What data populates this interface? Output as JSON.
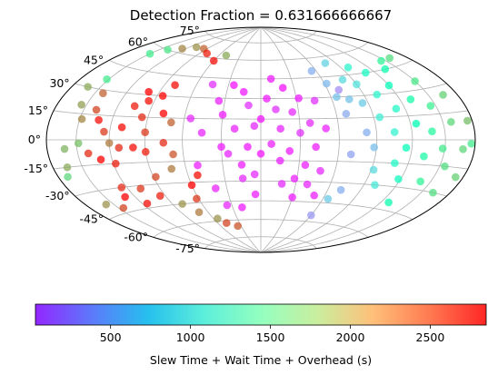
{
  "chart_data": {
    "type": "scatter",
    "projection": "hammer",
    "title": "Detection Fraction = 0.631666666667",
    "grid": true,
    "lat_ticks": [
      "75°",
      "60°",
      "45°",
      "30°",
      "15°",
      "0°",
      "-15°",
      "-30°",
      "-45°",
      "-60°",
      "-75°"
    ],
    "lat_tick_values": [
      75,
      60,
      45,
      30,
      15,
      0,
      -15,
      -30,
      -45,
      -60,
      -75
    ],
    "colorbar": {
      "label": "Slew Time + Wait Time + Overhead (s)",
      "range": [
        30,
        2850
      ],
      "ticks": [
        500,
        1000,
        1500,
        2000,
        2500
      ],
      "tick_labels": [
        "500",
        "1000",
        "1500",
        "2000",
        "2500"
      ],
      "colormap": "rainbow",
      "placement": "bottom"
    },
    "points": [
      [
        -150,
        55,
        1800
      ],
      [
        -140,
        60,
        1850
      ],
      [
        -125,
        63,
        2350
      ],
      [
        -110,
        66,
        2300
      ],
      [
        -95,
        66,
        2500
      ],
      [
        -80,
        63,
        2750
      ],
      [
        -60,
        58,
        2800
      ],
      [
        -50,
        63,
        2200
      ],
      [
        -163,
        30,
        2200
      ],
      [
        -152,
        36,
        1800
      ],
      [
        -155,
        20,
        2250
      ],
      [
        -148,
        12,
        2350
      ],
      [
        -148,
        -2,
        2100
      ],
      [
        -142,
        28,
        2500
      ],
      [
        -138,
        18,
        2600
      ],
      [
        -132,
        12,
        2800
      ],
      [
        -125,
        5,
        2650
      ],
      [
        -120,
        -2,
        2400
      ],
      [
        -140,
        -8,
        2700
      ],
      [
        -130,
        -12,
        2850
      ],
      [
        -118,
        -15,
        2750
      ],
      [
        -110,
        8,
        2800
      ],
      [
        -112,
        -5,
        2700
      ],
      [
        -105,
        22,
        2750
      ],
      [
        -100,
        32,
        2850
      ],
      [
        -95,
        26,
        2800
      ],
      [
        -95,
        15,
        2700
      ],
      [
        -90,
        5,
        2650
      ],
      [
        -100,
        -5,
        2800
      ],
      [
        -90,
        -8,
        2750
      ],
      [
        -85,
        30,
        2850
      ],
      [
        -80,
        38,
        2800
      ],
      [
        -78,
        18,
        2850
      ],
      [
        -75,
        -2,
        2700
      ],
      [
        -70,
        12,
        2500
      ],
      [
        -68,
        -10,
        2550
      ],
      [
        -72,
        -20,
        2400
      ],
      [
        -165,
        -15,
        2200
      ],
      [
        -162,
        -5,
        2150
      ],
      [
        -170,
        -20,
        1950
      ],
      [
        -158,
        -38,
        2300
      ],
      [
        -145,
        -42,
        2600
      ],
      [
        -130,
        -36,
        2850
      ],
      [
        -125,
        -30,
        2700
      ],
      [
        -115,
        -42,
        2800
      ],
      [
        -108,
        -32,
        2650
      ],
      [
        -95,
        -38,
        2750
      ],
      [
        -88,
        -25,
        2600
      ],
      [
        -80,
        -45,
        2300
      ],
      [
        -70,
        -52,
        2400
      ],
      [
        -55,
        -58,
        2300
      ],
      [
        -48,
        -62,
        2600
      ],
      [
        -35,
        -65,
        2550
      ],
      [
        -60,
        -32,
        2850
      ],
      [
        -52,
        -25,
        2800
      ],
      [
        -62,
        -42,
        2650
      ],
      [
        -45,
        40,
        200
      ],
      [
        -35,
        28,
        150
      ],
      [
        -30,
        18,
        120
      ],
      [
        -30,
        -5,
        130
      ],
      [
        -45,
        5,
        160
      ],
      [
        -25,
        40,
        90
      ],
      [
        -15,
        35,
        120
      ],
      [
        -10,
        25,
        200
      ],
      [
        -5,
        10,
        180
      ],
      [
        -20,
        8,
        150
      ],
      [
        -25,
        -10,
        160
      ],
      [
        -15,
        -18,
        130
      ],
      [
        -15,
        -28,
        180
      ],
      [
        -5,
        -40,
        140
      ],
      [
        -5,
        -25,
        170
      ],
      [
        -10,
        -5,
        120
      ],
      [
        0,
        15,
        100
      ],
      [
        0,
        -10,
        110
      ],
      [
        5,
        30,
        120
      ],
      [
        8,
        -3,
        150
      ],
      [
        10,
        45,
        130
      ],
      [
        12,
        22,
        200
      ],
      [
        15,
        8,
        160
      ],
      [
        15,
        -15,
        140
      ],
      [
        18,
        -32,
        180
      ],
      [
        20,
        38,
        90
      ],
      [
        22,
        -8,
        130
      ],
      [
        25,
        20,
        170
      ],
      [
        28,
        -28,
        150
      ],
      [
        30,
        5,
        200
      ],
      [
        30,
        -42,
        130
      ],
      [
        32,
        30,
        120
      ],
      [
        35,
        -18,
        140
      ],
      [
        38,
        12,
        180
      ],
      [
        40,
        -32,
        160
      ],
      [
        42,
        -5,
        130
      ],
      [
        45,
        28,
        200
      ],
      [
        48,
        -22,
        170
      ],
      [
        50,
        8,
        150
      ],
      [
        50,
        -40,
        140
      ],
      [
        -40,
        -35,
        150
      ],
      [
        -35,
        -48,
        160
      ],
      [
        -20,
        -50,
        130
      ],
      [
        -50,
        -18,
        140
      ],
      [
        -55,
        15,
        170
      ],
      [
        55,
        50,
        700
      ],
      [
        60,
        -55,
        600
      ],
      [
        62,
        40,
        750
      ],
      [
        65,
        30,
        800
      ],
      [
        68,
        18,
        680
      ],
      [
        70,
        -10,
        650
      ],
      [
        70,
        35,
        550
      ],
      [
        72,
        -35,
        700
      ],
      [
        75,
        28,
        800
      ],
      [
        78,
        55,
        900
      ],
      [
        80,
        42,
        950
      ],
      [
        82,
        5,
        700
      ],
      [
        85,
        25,
        850
      ],
      [
        88,
        -5,
        780
      ],
      [
        90,
        38,
        1000
      ],
      [
        92,
        -20,
        950
      ],
      [
        95,
        15,
        1100
      ],
      [
        98,
        50,
        1200
      ],
      [
        100,
        -30,
        1050
      ],
      [
        102,
        30,
        1200
      ],
      [
        105,
        5,
        1150
      ],
      [
        108,
        -15,
        1250
      ],
      [
        110,
        45,
        1300
      ],
      [
        112,
        20,
        1250
      ],
      [
        115,
        -5,
        1400
      ],
      [
        118,
        -25,
        1350
      ],
      [
        120,
        35,
        1400
      ],
      [
        125,
        10,
        1450
      ],
      [
        128,
        -40,
        1500
      ],
      [
        130,
        25,
        1550
      ],
      [
        132,
        -10,
        1600
      ],
      [
        135,
        45,
        1500
      ],
      [
        138,
        5,
        1650
      ],
      [
        140,
        -25,
        1700
      ],
      [
        145,
        20,
        1750
      ],
      [
        148,
        -5,
        1800
      ],
      [
        150,
        35,
        1850
      ],
      [
        155,
        -15,
        1900
      ],
      [
        158,
        10,
        1950
      ],
      [
        162,
        -30,
        1900
      ],
      [
        165,
        25,
        2000
      ],
      [
        168,
        -5,
        1950
      ],
      [
        172,
        -20,
        2000
      ],
      [
        175,
        10,
        2100
      ],
      [
        176,
        -2,
        1800
      ],
      [
        160,
        50,
        1900
      ],
      [
        145,
        50,
        1700
      ],
      [
        65,
        -42,
        850
      ]
    ]
  }
}
